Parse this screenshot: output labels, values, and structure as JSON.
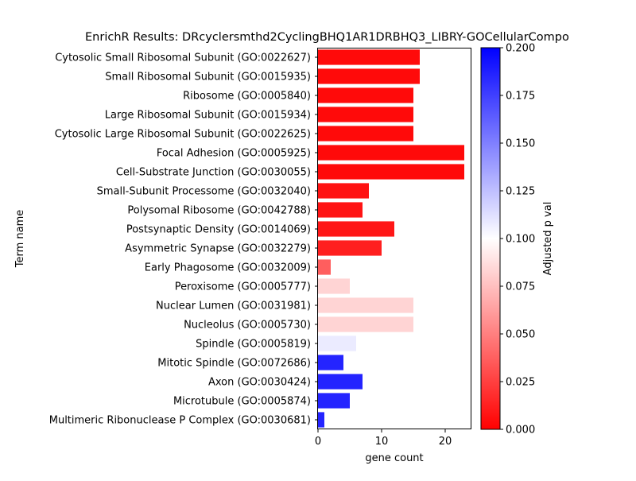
{
  "chart_data": {
    "type": "bar",
    "orientation": "horizontal",
    "title": "EnrichR Results: DRcyclersmthd2CyclingBHQ1AR1DRBHQ3_LIBRY-GOCellularCompo",
    "xlabel": "gene count",
    "ylabel": "Term name",
    "xlim": [
      0,
      24
    ],
    "x_ticks": [
      0,
      10,
      20
    ],
    "categories": [
      "Cytosolic Small Ribosomal Subunit (GO:0022627)",
      "Small Ribosomal Subunit (GO:0015935)",
      "Ribosome (GO:0005840)",
      "Large Ribosomal Subunit (GO:0015934)",
      "Cytosolic Large Ribosomal Subunit (GO:0022625)",
      "Focal Adhesion (GO:0005925)",
      "Cell-Substrate Junction (GO:0030055)",
      "Small-Subunit Processome (GO:0032040)",
      "Polysomal Ribosome (GO:0042788)",
      "Postsynaptic Density (GO:0014069)",
      "Asymmetric Synapse (GO:0032279)",
      "Early Phagosome (GO:0032009)",
      "Peroxisome (GO:0005777)",
      "Nuclear Lumen (GO:0031981)",
      "Nucleolus (GO:0005730)",
      "Spindle (GO:0005819)",
      "Mitotic Spindle (GO:0072686)",
      "Axon (GO:0030424)",
      "Microtubule (GO:0005874)",
      "Multimeric Ribonuclease P Complex (GO:0030681)"
    ],
    "values": [
      16,
      16,
      15,
      15,
      15,
      23,
      23,
      8,
      7,
      12,
      10,
      2,
      5,
      15,
      15,
      6,
      4,
      7,
      5,
      1
    ],
    "adjusted_p_values": [
      0.004,
      0.004,
      0.004,
      0.004,
      0.004,
      0.004,
      0.004,
      0.007,
      0.008,
      0.009,
      0.012,
      0.037,
      0.083,
      0.083,
      0.083,
      0.108,
      0.186,
      0.186,
      0.186,
      0.186
    ],
    "colorbar": {
      "label": "Adjusted p val",
      "range": [
        0.0,
        0.2
      ],
      "ticks": [
        "0.000",
        "0.025",
        "0.050",
        "0.075",
        "0.100",
        "0.125",
        "0.150",
        "0.175",
        "0.200"
      ],
      "colormap": [
        "#ff0000",
        "#ffffff",
        "#0000ff"
      ]
    },
    "grid": false,
    "legend": "colorbar-right"
  }
}
